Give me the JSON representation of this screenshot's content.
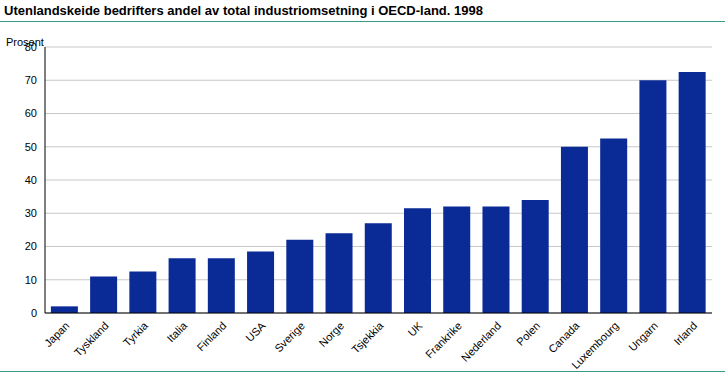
{
  "chart_data": {
    "type": "bar",
    "title": "Utenlandskeide bedrifters andel av total industriomsetning i OECD-land. 1998",
    "y_label": "Prosent",
    "categories": [
      "Japan",
      "Tyskland",
      "Tyrkia",
      "Italia",
      "Finland",
      "USA",
      "Sverige",
      "Norge",
      "Tsjekkia",
      "UK",
      "Frankrike",
      "Nederland",
      "Polen",
      "Canada",
      "Luxembourg",
      "Ungarn",
      "Irland"
    ],
    "values": [
      2,
      11,
      12.5,
      16.5,
      16.5,
      18.5,
      22,
      24,
      27,
      31.5,
      32,
      32,
      34,
      50,
      52.5,
      70,
      72.5
    ],
    "color": "#0a2a96",
    "ylim": [
      0,
      80
    ],
    "yticks": [
      0,
      10,
      20,
      30,
      40,
      50,
      60,
      70,
      80
    ],
    "grid": true
  }
}
